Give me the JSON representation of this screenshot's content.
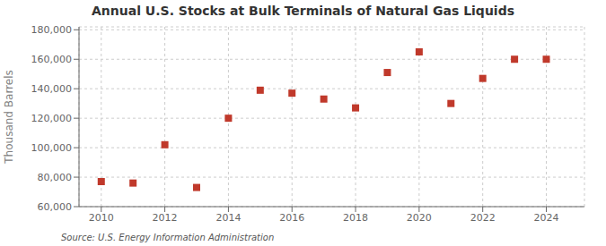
{
  "chart_data": {
    "type": "scatter",
    "title": "Annual U.S. Stocks at Bulk Terminals of Natural Gas Liquids",
    "ylabel": "Thousand Barrels",
    "annotation": "Source: U.S. Energy Information Administration",
    "x": [
      2010,
      2011,
      2012,
      2013,
      2014,
      2015,
      2016,
      2017,
      2018,
      2019,
      2020,
      2021,
      2022,
      2023,
      2024
    ],
    "values": [
      77000,
      76000,
      102000,
      73000,
      120000,
      139000,
      137000,
      133000,
      127000,
      151000,
      165000,
      130000,
      147000,
      160000,
      160000
    ],
    "color": "#c0392b",
    "marker": "square",
    "xlim": [
      2009.3,
      2025.2
    ],
    "xticks": [
      2010,
      2012,
      2014,
      2016,
      2018,
      2020,
      2022,
      2024
    ],
    "ylim": [
      60000,
      182000
    ],
    "yticks": [
      {
        "value": 60000,
        "label": "60,000"
      },
      {
        "value": 80000,
        "label": "80,000"
      },
      {
        "value": 100000,
        "label": "100,000"
      },
      {
        "value": 120000,
        "label": "120,000"
      },
      {
        "value": 140000,
        "label": "140,000"
      },
      {
        "value": 160000,
        "label": "160,000"
      },
      {
        "value": 180000,
        "label": "180,000"
      }
    ],
    "grid": true
  }
}
